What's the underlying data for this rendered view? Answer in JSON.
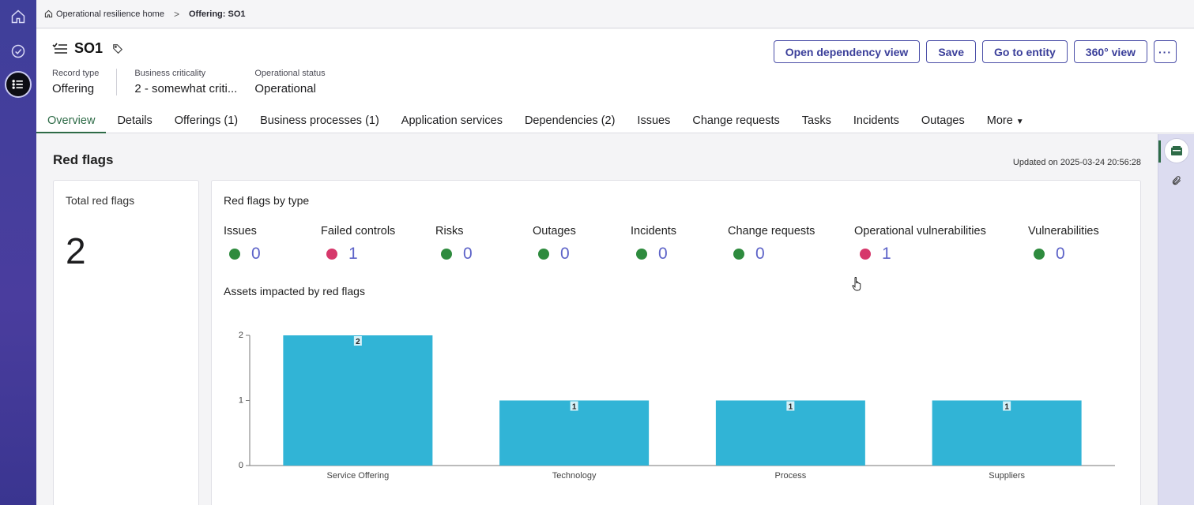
{
  "breadcrumb": {
    "home": "Operational resilience home",
    "current": "Offering: SO1"
  },
  "record": {
    "title": "SO1",
    "fields": [
      {
        "label": "Record type",
        "value": "Offering"
      },
      {
        "label": "Business criticality",
        "value": "2 - somewhat criti..."
      },
      {
        "label": "Operational status",
        "value": "Operational"
      }
    ]
  },
  "actions": {
    "dependency": "Open dependency view",
    "save": "Save",
    "go_entity": "Go to entity",
    "view360": "360° view",
    "more": "···"
  },
  "tabs": [
    "Overview",
    "Details",
    "Offerings (1)",
    "Business processes (1)",
    "Application services",
    "Dependencies (2)",
    "Issues",
    "Change requests",
    "Tasks",
    "Incidents",
    "Outages",
    "More"
  ],
  "overview": {
    "section_title": "Red flags",
    "updated": "Updated on 2025-03-24 20:56:28",
    "total_label": "Total red flags",
    "total_value": "2",
    "by_type_label": "Red flags by type",
    "flag_types": [
      {
        "name": "Issues",
        "count": "0",
        "status": "ok"
      },
      {
        "name": "Failed controls",
        "count": "1",
        "status": "alert"
      },
      {
        "name": "Risks",
        "count": "0",
        "status": "ok"
      },
      {
        "name": "Outages",
        "count": "0",
        "status": "ok"
      },
      {
        "name": "Incidents",
        "count": "0",
        "status": "ok"
      },
      {
        "name": "Change requests",
        "count": "0",
        "status": "ok"
      },
      {
        "name": "Operational vulnerabilities",
        "count": "1",
        "status": "alert"
      },
      {
        "name": "Vulnerabilities",
        "count": "0",
        "status": "ok"
      }
    ],
    "assets_label": "Assets impacted by red flags"
  },
  "colors": {
    "ok": "#2e8b3e",
    "alert": "#d6386b",
    "bar": "#31b4d6",
    "accent": "#3b3f9a"
  },
  "icons": {
    "rail": [
      "home-icon",
      "check-circle-icon",
      "list-icon"
    ],
    "right_rail": [
      "sidebar-panel-icon",
      "paperclip-icon"
    ],
    "title": "list-task-icon",
    "tag": "tag-icon"
  },
  "chart_data": {
    "type": "bar",
    "categories": [
      "Service Offering",
      "Technology",
      "Process",
      "Suppliers"
    ],
    "values": [
      2,
      1,
      1,
      1
    ],
    "title": "",
    "xlabel": "",
    "ylabel": "",
    "ylim": [
      0,
      2
    ],
    "yticks": [
      0,
      1,
      2
    ],
    "data_labels": true,
    "grid": false
  }
}
